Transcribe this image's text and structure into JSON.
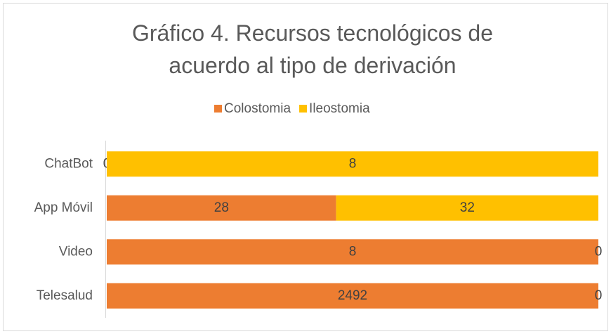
{
  "chart_data": {
    "type": "bar",
    "orientation": "horizontal",
    "stacking": "percent",
    "title": "Gráfico 4. Recursos tecnológicos de acuerdo al tipo de derivación",
    "categories": [
      "ChatBot",
      "App Móvil",
      "Video",
      "Telesalud"
    ],
    "series": [
      {
        "name": "Colostomia",
        "color": "#ed7d31",
        "values": [
          0,
          28,
          8,
          2492
        ]
      },
      {
        "name": "Ileostomia",
        "color": "#ffc000",
        "values": [
          8,
          32,
          0,
          0
        ]
      }
    ],
    "legend": "top"
  }
}
